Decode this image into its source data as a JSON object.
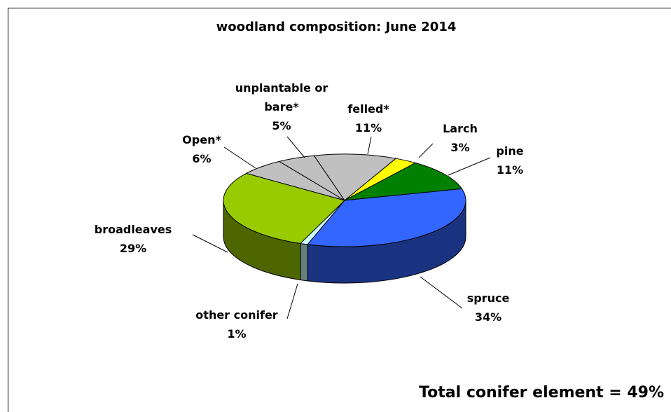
{
  "chart_data": {
    "type": "pie3d",
    "title": "woodland composition: June 2014",
    "categories": [
      "Larch",
      "pine",
      "spruce",
      "other conifer",
      "broadleaves",
      "Open*",
      "unplantable or bare*",
      "felled*"
    ],
    "values": [
      3,
      11,
      34,
      1,
      29,
      6,
      5,
      11
    ],
    "value_labels": [
      "3%",
      "11%",
      "34%",
      "1%",
      "29%",
      "6%",
      "5%",
      "11%"
    ],
    "colors": [
      "#ffff00",
      "#008000",
      "#3366ff",
      "#ccffff",
      "#99cc00",
      "#c0c0c0",
      "#c0c0c0",
      "#c0c0c0"
    ],
    "annotation": "Total conifer element = 49%"
  }
}
